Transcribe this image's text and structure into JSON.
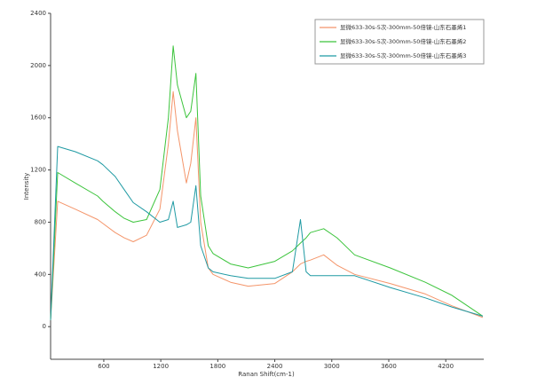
{
  "chart_data": {
    "type": "line",
    "x_label": "Ranan Shift(cm-1)",
    "y_label": "Intensity",
    "x": [
      40,
      115,
      300,
      535,
      590,
      720,
      815,
      910,
      1050,
      1190,
      1280,
      1330,
      1375,
      1470,
      1515,
      1570,
      1620,
      1700,
      1750,
      1935,
      2120,
      2400,
      2585,
      2670,
      2730,
      2775,
      2915,
      3055,
      3240,
      3615,
      3985,
      4265,
      4590
    ],
    "series": [
      {
        "name": "显微633-30s-5次-300mm-50倍镜-山东石墨烯1",
        "color": "#f4956a",
        "values": [
          50,
          960,
          900,
          820,
          790,
          720,
          680,
          650,
          700,
          900,
          1400,
          1800,
          1500,
          1100,
          1250,
          1600,
          800,
          450,
          400,
          340,
          310,
          330,
          420,
          480,
          500,
          510,
          550,
          470,
          400,
          330,
          250,
          160,
          70
        ]
      },
      {
        "name": "显微633-30s-5次-300mm-50倍镜-山东石墨烯2",
        "color": "#3cc43c",
        "values": [
          50,
          1180,
          1100,
          1000,
          960,
          880,
          830,
          800,
          820,
          1050,
          1600,
          2150,
          1850,
          1600,
          1650,
          1940,
          1000,
          620,
          560,
          480,
          450,
          500,
          580,
          640,
          680,
          720,
          750,
          680,
          550,
          450,
          340,
          240,
          80
        ]
      },
      {
        "name": "显微633-30s-5次-300mm-50倍镜-山东石墨烯3",
        "color": "#1f9aa3",
        "values": [
          50,
          1380,
          1340,
          1270,
          1240,
          1150,
          1050,
          950,
          880,
          800,
          820,
          960,
          760,
          780,
          800,
          1080,
          620,
          450,
          420,
          390,
          370,
          370,
          420,
          820,
          420,
          390,
          390,
          390,
          390,
          300,
          220,
          150,
          80
        ]
      }
    ],
    "xlim": [
      40,
      4600
    ],
    "ylim": [
      -250,
      2400
    ],
    "xticks": [
      600,
      1200,
      1800,
      2400,
      3000,
      3600,
      4200
    ],
    "yticks": [
      0,
      400,
      800,
      1200,
      1600,
      2000,
      2400
    ],
    "legend": "upper right"
  }
}
